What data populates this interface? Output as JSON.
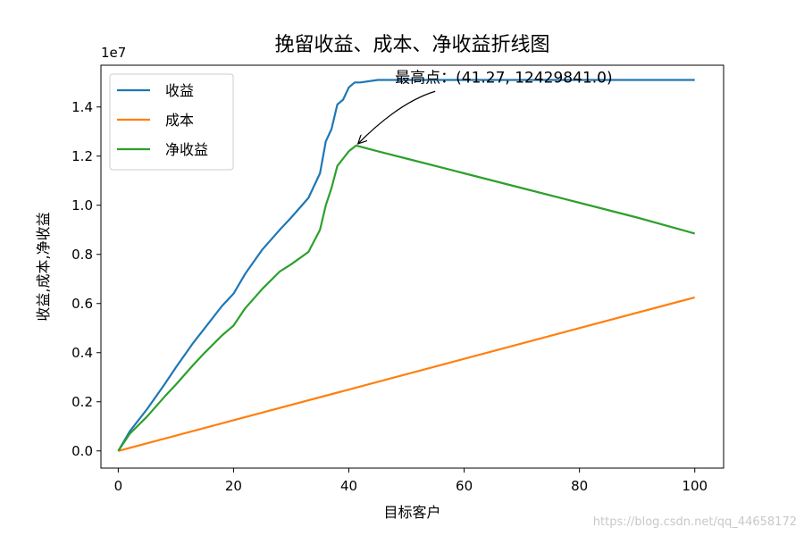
{
  "chart_data": {
    "type": "line",
    "title": "挽留收益、成本、净收益折线图",
    "xlabel": "目标客户",
    "ylabel": "收益,成本,净收益",
    "y_offset_text": "1e7",
    "xlim": [
      -3,
      105
    ],
    "ylim": [
      -0.07,
      1.57
    ],
    "y_scale_factor": 10000000,
    "x_ticks": [
      0,
      20,
      40,
      60,
      80,
      100
    ],
    "x_tick_labels": [
      "0",
      "20",
      "40",
      "60",
      "80",
      "100"
    ],
    "y_ticks": [
      0.0,
      0.2,
      0.4,
      0.6,
      0.8,
      1.0,
      1.2,
      1.4
    ],
    "y_tick_labels": [
      "0.0",
      "0.2",
      "0.4",
      "0.6",
      "0.8",
      "1.0",
      "1.2",
      "1.4"
    ],
    "grid": false,
    "legend_position": "top-left",
    "series": [
      {
        "name": "收益",
        "color": "#1f77b4",
        "x": [
          0,
          2,
          5,
          8,
          10,
          13,
          15,
          18,
          20,
          22,
          25,
          28,
          30,
          33,
          35,
          36,
          37,
          38,
          39,
          40,
          41,
          42,
          45,
          50,
          60,
          70,
          80,
          90,
          100
        ],
        "y": [
          0.0,
          0.08,
          0.17,
          0.27,
          0.34,
          0.44,
          0.5,
          0.59,
          0.64,
          0.72,
          0.82,
          0.9,
          0.95,
          1.03,
          1.13,
          1.26,
          1.31,
          1.41,
          1.43,
          1.48,
          1.5,
          1.5,
          1.51,
          1.51,
          1.51,
          1.51,
          1.51,
          1.51,
          1.51
        ]
      },
      {
        "name": "成本",
        "color": "#ff7f0e",
        "x": [
          0,
          100
        ],
        "y": [
          0.0,
          0.625
        ]
      },
      {
        "name": "净收益",
        "color": "#2ca02c",
        "x": [
          0,
          2,
          5,
          8,
          10,
          13,
          15,
          18,
          20,
          22,
          25,
          28,
          30,
          33,
          35,
          36,
          37,
          38,
          39,
          40,
          41.27,
          45,
          50,
          60,
          70,
          80,
          90,
          100
        ],
        "y": [
          0.0,
          0.07,
          0.14,
          0.22,
          0.27,
          0.35,
          0.4,
          0.47,
          0.51,
          0.58,
          0.66,
          0.73,
          0.76,
          0.81,
          0.9,
          1.0,
          1.07,
          1.16,
          1.19,
          1.22,
          1.243,
          1.22,
          1.19,
          1.13,
          1.07,
          1.01,
          0.95,
          0.885
        ]
      }
    ],
    "annotation": {
      "text": "最高点：(41.27, 12429841.0)",
      "x": 41.27,
      "y": 1.2429841,
      "text_x": 48,
      "text_y": 1.5
    }
  },
  "watermark": "https://blog.csdn.net/qq_44658172"
}
